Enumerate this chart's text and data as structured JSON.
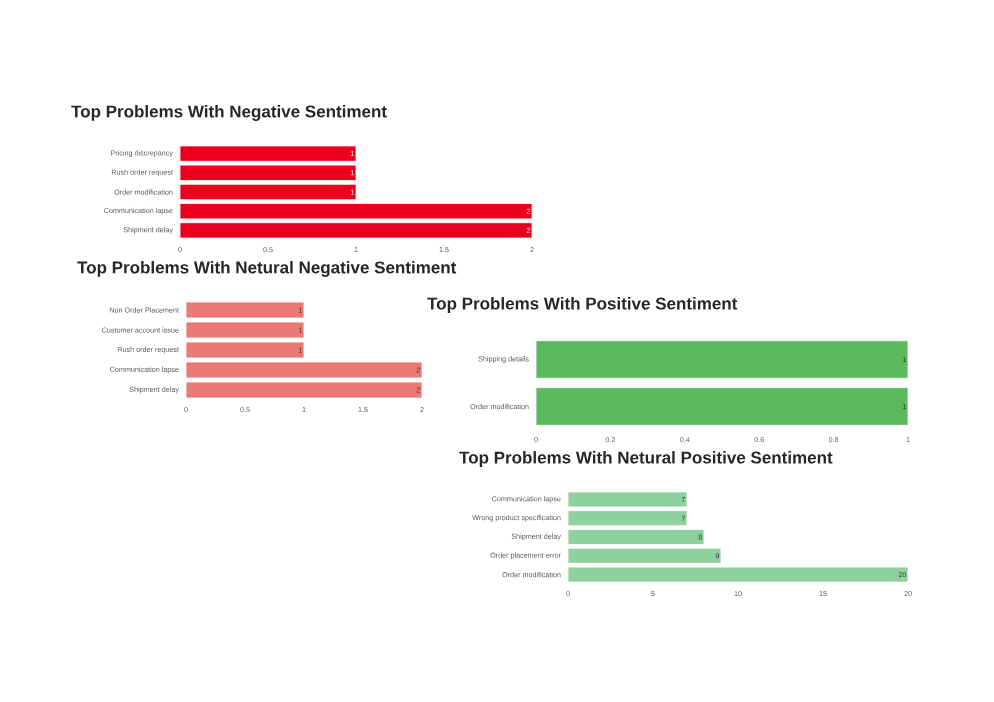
{
  "chart_data": [
    {
      "type": "bar",
      "orientation": "horizontal",
      "title": "Top Problems With Negative Sentiment",
      "categories": [
        "Pricing discrepancy",
        "Rush order request",
        "Order modification",
        "Communication lapse",
        "Shipment delay"
      ],
      "values": [
        1,
        1,
        1,
        2,
        2
      ],
      "color": "#e8001c",
      "xlim": [
        0,
        2
      ],
      "xticks": [
        0,
        0.5,
        1,
        1.5,
        2
      ],
      "data_labels": true
    },
    {
      "type": "bar",
      "orientation": "horizontal",
      "title": "Top Problems With Netural Negative Sentiment",
      "categories": [
        "Non Order Placement",
        "Customer account issue",
        "Rush order request",
        "Communication lapse",
        "Shipment delay"
      ],
      "values": [
        1,
        1,
        1,
        2,
        2
      ],
      "color": "#ec7a74",
      "xlim": [
        0,
        2
      ],
      "xticks": [
        0,
        0.5,
        1,
        1.5,
        2
      ],
      "data_labels": true
    },
    {
      "type": "bar",
      "orientation": "horizontal",
      "title": "Top Problems With Positive Sentiment",
      "categories": [
        "Shipping details",
        "Order modification"
      ],
      "values": [
        1,
        1
      ],
      "color": "#5cb85c",
      "xlim": [
        0,
        1
      ],
      "xticks": [
        0,
        0.2,
        0.4,
        0.6,
        0.8,
        1
      ],
      "data_labels": true
    },
    {
      "type": "bar",
      "orientation": "horizontal",
      "title": "Top Problems With Netural Positive Sentiment",
      "categories": [
        "Communication lapse",
        "Wrong product specification",
        "Shipment delay",
        "Order placement error",
        "Order modification"
      ],
      "values": [
        7,
        7,
        8,
        9,
        20
      ],
      "color": "#8fd19e",
      "xlim": [
        0,
        20
      ],
      "xticks": [
        0,
        5,
        10,
        15,
        20
      ],
      "data_labels": true
    }
  ]
}
